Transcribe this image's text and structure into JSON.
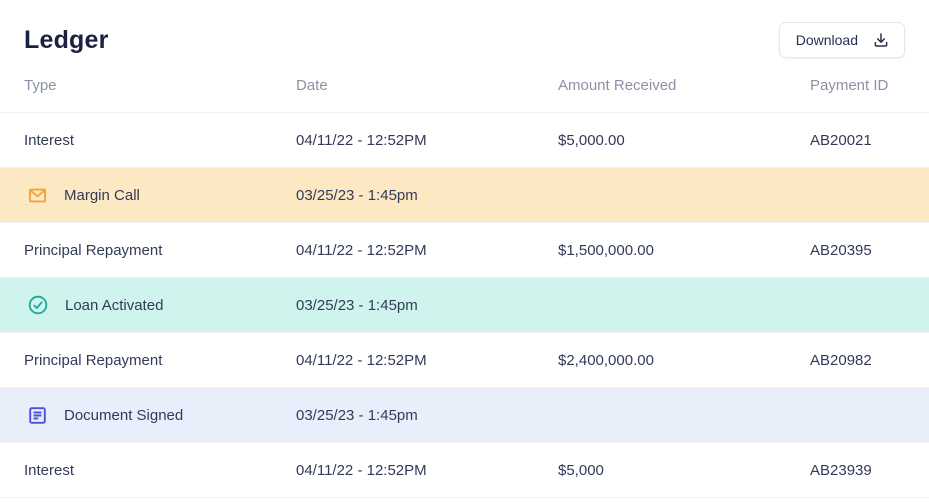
{
  "page": {
    "title": "Ledger"
  },
  "toolbar": {
    "download_label": "Download",
    "download_icon": "download-icon"
  },
  "colors": {
    "title_text": "#1B2141",
    "body_text": "#333A58",
    "header_text": "#8C92A6",
    "row_border": "#F0F1F6",
    "margin_call_bg": "#FCE9C4",
    "margin_call_icon": "#F2A43A",
    "loan_activated_bg": "#CFF4ED",
    "loan_activated_icon": "#21A795",
    "document_signed_bg": "#E9EEFB",
    "document_signed_icon": "#4A50E3"
  },
  "table": {
    "columns": [
      {
        "key": "type",
        "label": "Type"
      },
      {
        "key": "date",
        "label": "Date"
      },
      {
        "key": "amount",
        "label": "Amount Received"
      },
      {
        "key": "payment_id",
        "label": "Payment ID"
      }
    ],
    "rows": [
      {
        "kind": "transaction",
        "type": "Interest",
        "date": "04/11/22 - 12:52PM",
        "amount": "$5,000.00",
        "payment_id": "AB20021"
      },
      {
        "kind": "event",
        "event": "margin-call",
        "icon": "envelope-icon",
        "icon_color": "#F2A43A",
        "bg": "#FCE9C4",
        "type": "Margin Call",
        "date": "03/25/23 - 1:45pm",
        "amount": "",
        "payment_id": ""
      },
      {
        "kind": "transaction",
        "type": "Principal Repayment",
        "date": "04/11/22 - 12:52PM",
        "amount": "$1,500,000.00",
        "payment_id": "AB20395"
      },
      {
        "kind": "event",
        "event": "loan-activated",
        "icon": "check-circle-icon",
        "icon_color": "#21A795",
        "bg": "#CFF4ED",
        "type": "Loan Activated",
        "date": "03/25/23 - 1:45pm",
        "amount": "",
        "payment_id": ""
      },
      {
        "kind": "transaction",
        "type": "Principal Repayment",
        "date": "04/11/22 - 12:52PM",
        "amount": "$2,400,000.00",
        "payment_id": "AB20982"
      },
      {
        "kind": "event",
        "event": "document-signed",
        "icon": "document-icon",
        "icon_color": "#4A50E3",
        "bg": "#E9EEFB",
        "type": "Document Signed",
        "date": "03/25/23 - 1:45pm",
        "amount": "",
        "payment_id": ""
      },
      {
        "kind": "transaction",
        "type": "Interest",
        "date": "04/11/22 - 12:52PM",
        "amount": "$5,000",
        "payment_id": "AB23939"
      }
    ]
  }
}
